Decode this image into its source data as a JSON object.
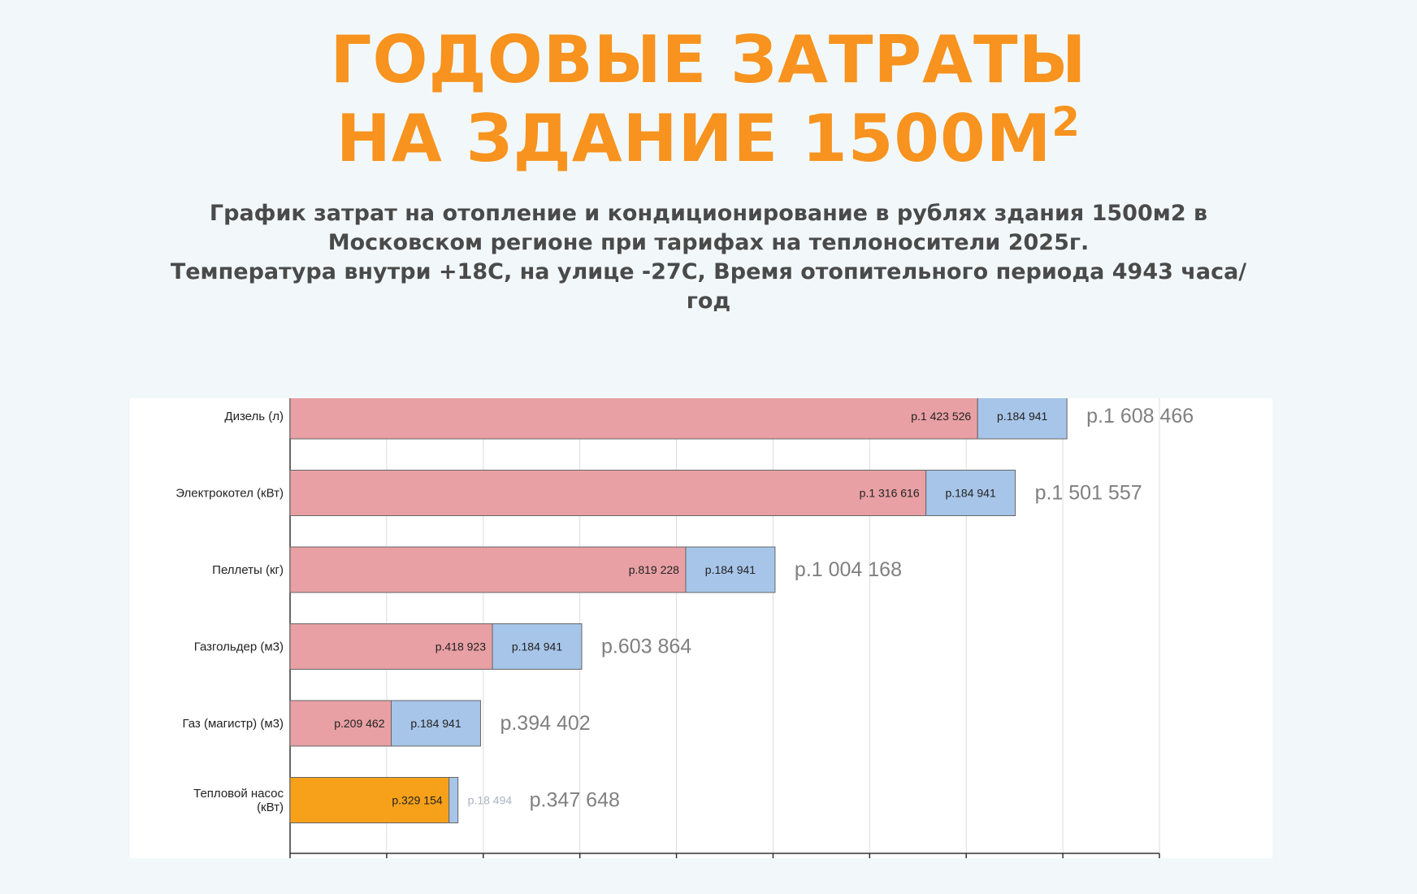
{
  "header": {
    "title_line_1": "ГОДОВЫЕ ЗАТРАТЫ",
    "title_line_2": "НА ЗДАНИЕ 1500М",
    "title_superscript": "2",
    "subtitle_lines": [
      "График затрат на отопление и кондиционирование в рублях здания 1500м2 в",
      "Московском регионе при тарифах на теплоносители 2025г.",
      "Температура внутри +18С, на улице -27С, Время отопительного периода 4943 часа/",
      "год"
    ]
  },
  "colors": {
    "title": "#f7931e",
    "segment_primary": "#e8a0a4",
    "segment_secondary": "#a7c5e8",
    "segment_heat_pump": "#f7a11a",
    "grid": "#dcdcdc",
    "total_text": "#808080"
  },
  "chart_data": {
    "type": "bar",
    "orientation": "horizontal",
    "stacked": true,
    "xlim": [
      0,
      1800000
    ],
    "x_tick_step": 200000,
    "grid": true,
    "categories": [
      "Дизель (л)",
      "Электрокотел (кВт)",
      "Пеллеты (кг)",
      "Газгольдер (м3)",
      "Газ (магистр) (м3)",
      "Тепловой насос (кВт)"
    ],
    "category_lines": [
      [
        "Дизель (л)"
      ],
      [
        "Электрокотел (кВт)"
      ],
      [
        "Пеллеты (кг)"
      ],
      [
        "Газгольдер (м3)"
      ],
      [
        "Газ (магистр) (м3)"
      ],
      [
        "Тепловой насос",
        "(кВт)"
      ]
    ],
    "series": [
      {
        "values": [
          1423526,
          1316616,
          819228,
          418923,
          209462,
          329154
        ],
        "labels": [
          "р.1 423 526",
          "р.1 316 616",
          "р.819 228",
          "р.418 923",
          "р.209 462",
          "р.329 154"
        ]
      },
      {
        "values": [
          184941,
          184941,
          184941,
          184941,
          184941,
          18494
        ],
        "labels": [
          "р.184 941",
          "р.184 941",
          "р.184 941",
          "р.184 941",
          "р.184 941",
          "р.18 494"
        ]
      }
    ],
    "totals": [
      1608466,
      1501557,
      1004168,
      603864,
      394402,
      347648
    ],
    "total_labels": [
      "р.1 608 466",
      "р.1 501 557",
      "р.1 004 168",
      "р.603 864",
      "р.394 402",
      "р.347 648"
    ]
  }
}
